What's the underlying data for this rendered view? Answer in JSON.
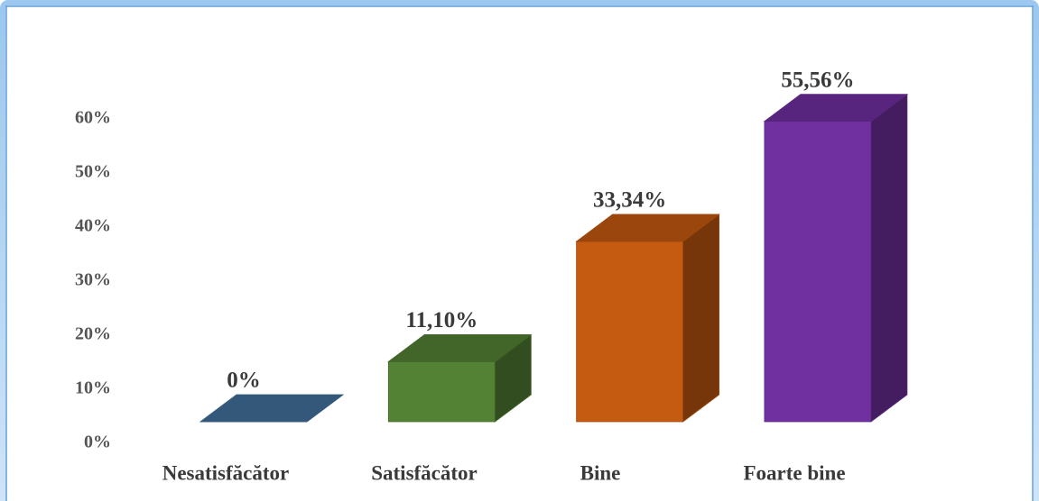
{
  "chart_data": {
    "type": "bar3d",
    "categories": [
      "Nesatisfăcător",
      "Satisfăcător",
      "Bine",
      "Foarte bine"
    ],
    "values": [
      0,
      11.1,
      33.34,
      55.56
    ],
    "value_labels": [
      "0%",
      "11,10%",
      "33,34%",
      "55,56%"
    ],
    "colors": [
      "#41719c",
      "#548235",
      "#c55a11",
      "#7030a0"
    ],
    "ylim": [
      0,
      60
    ],
    "yticks": [
      {
        "value": 0,
        "label": "0%"
      },
      {
        "value": 10,
        "label": "10%"
      },
      {
        "value": 20,
        "label": "20%"
      },
      {
        "value": 30,
        "label": "30%"
      },
      {
        "value": 40,
        "label": "40%"
      },
      {
        "value": 50,
        "label": "50%"
      },
      {
        "value": 60,
        "label": "60%"
      }
    ]
  }
}
